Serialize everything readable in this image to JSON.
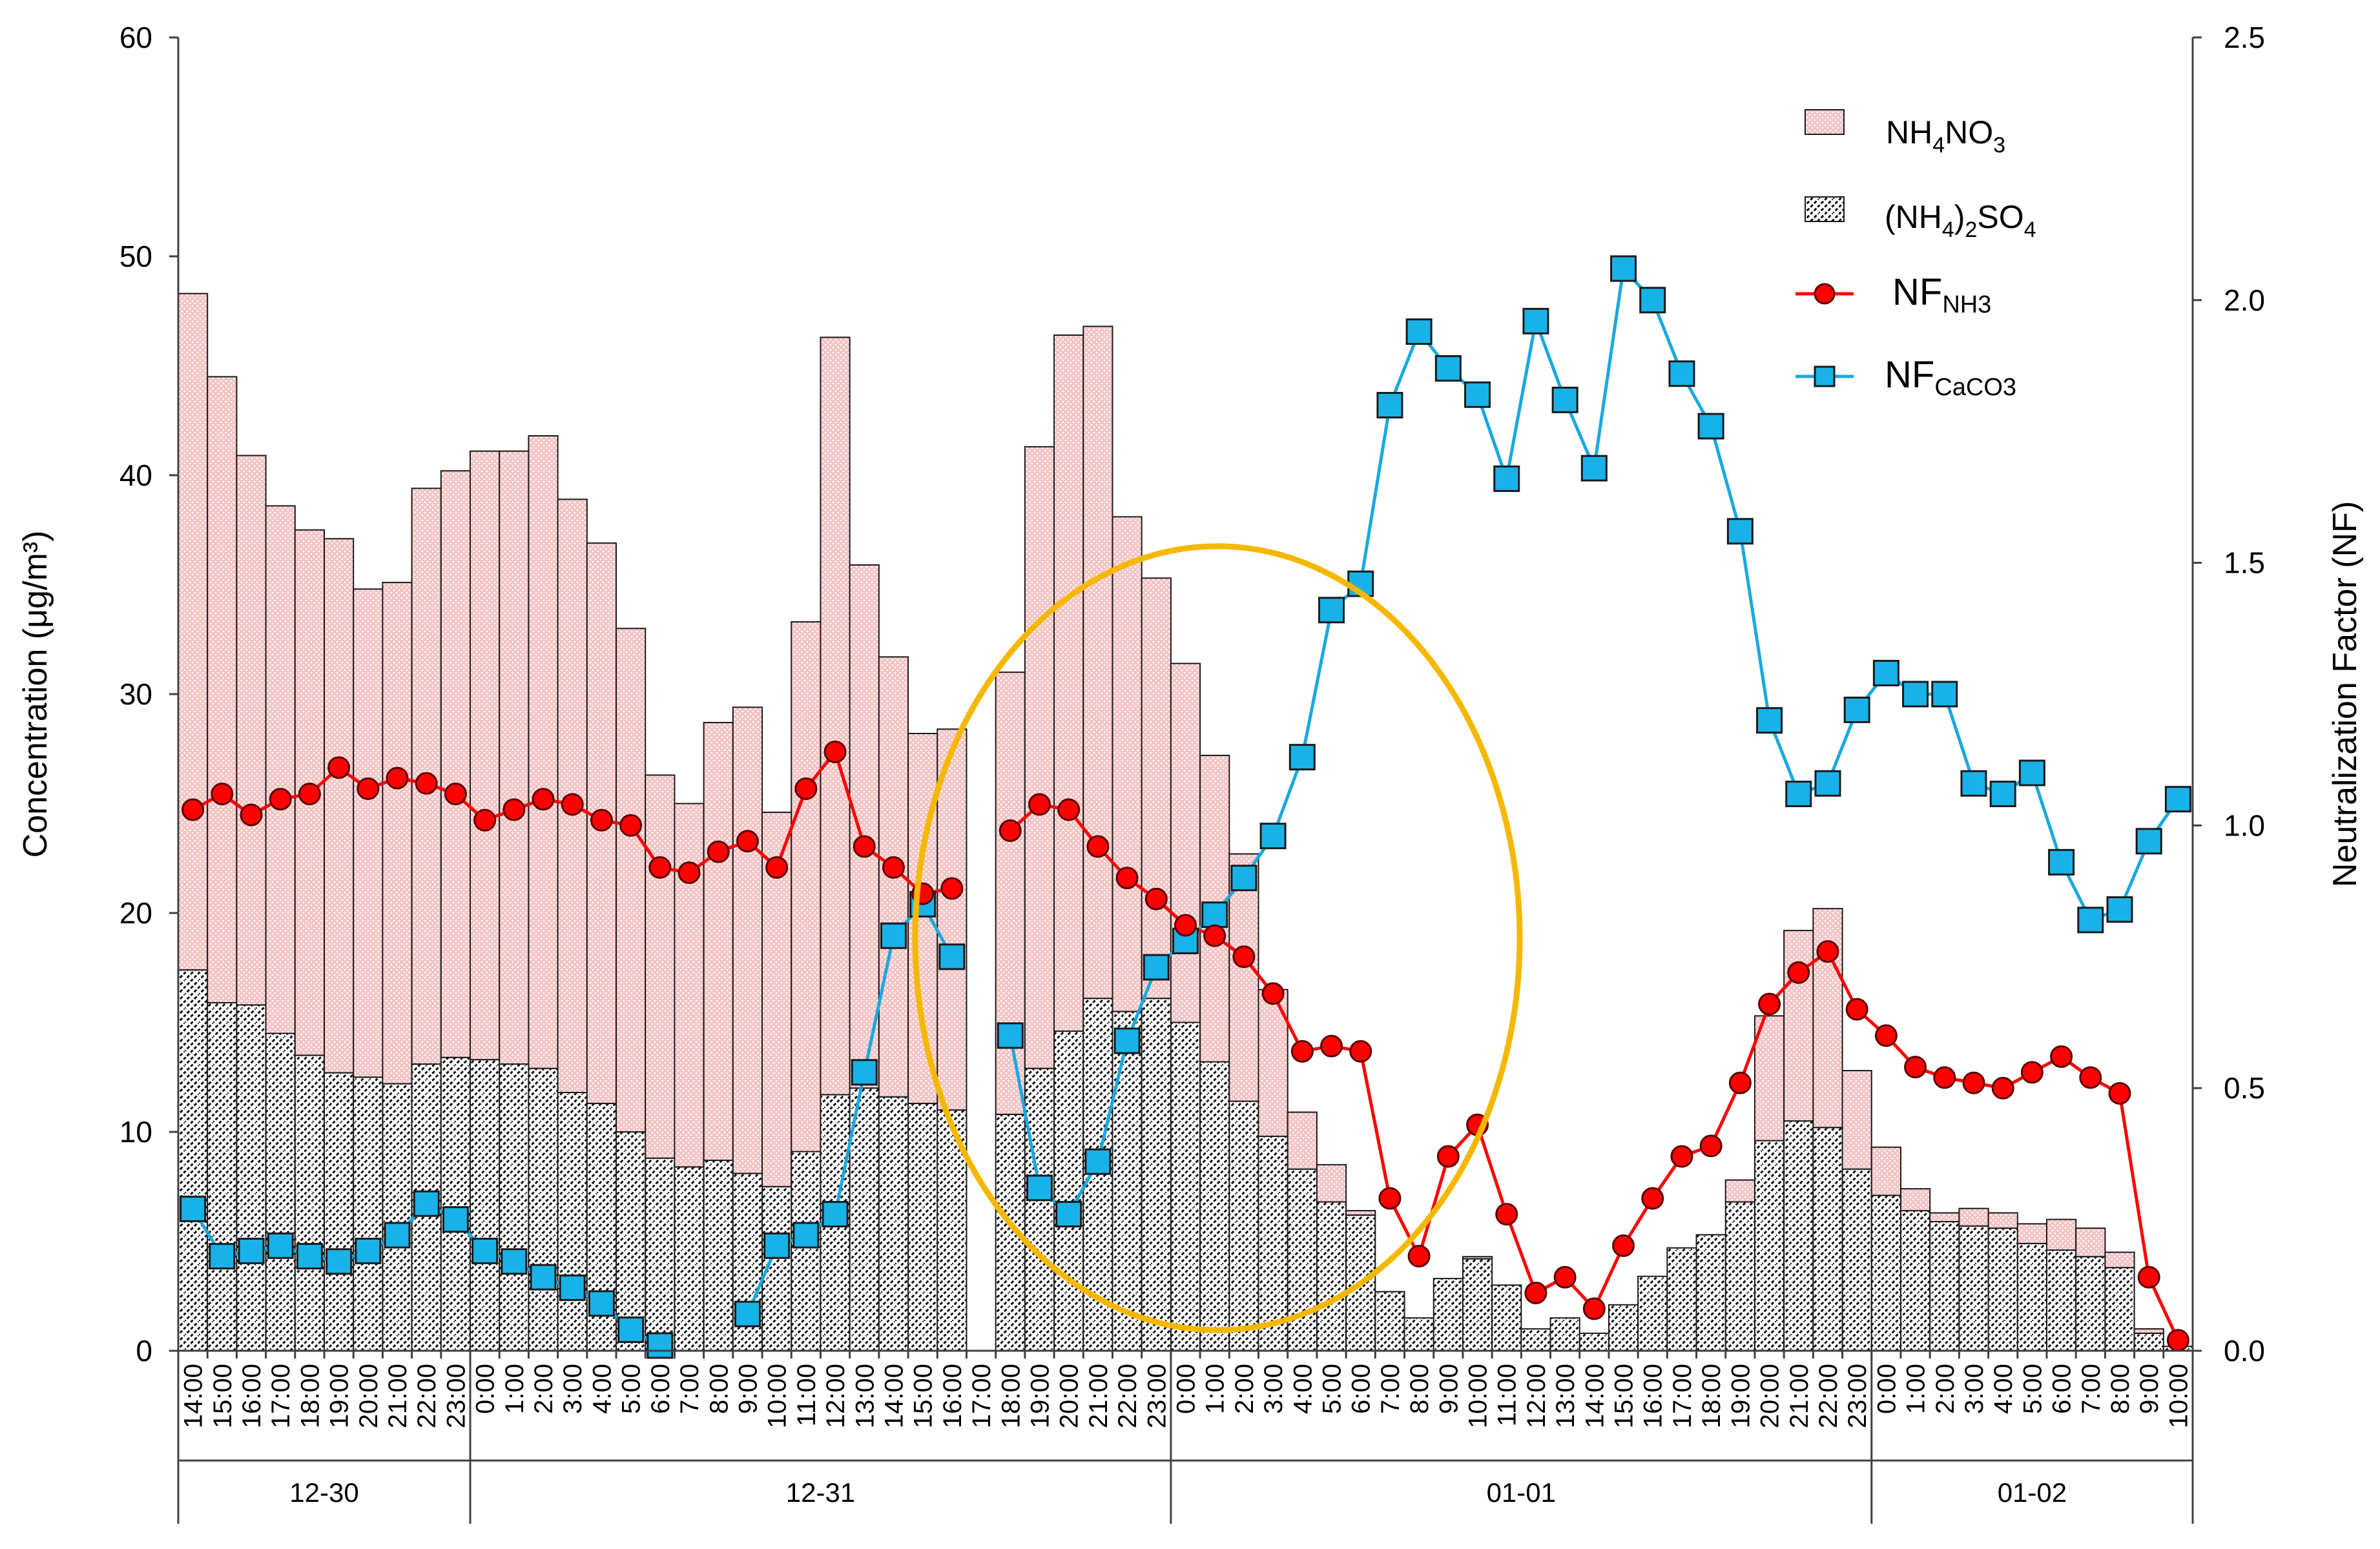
{
  "chart_data": {
    "type": "bar",
    "stacked": true,
    "ylabel": "Concentration (μg/m³)",
    "y2label": "Neutralization Factor (NF)",
    "ylim": [
      0,
      60
    ],
    "y2lim": [
      0,
      2.5
    ],
    "yticks": [
      "0",
      "10",
      "20",
      "30",
      "40",
      "50",
      "60"
    ],
    "y2ticks": [
      "0.0",
      "0.5",
      "1.0",
      "1.5",
      "2.0",
      "2.5"
    ],
    "categories": [
      "14:00",
      "15:00",
      "16:00",
      "17:00",
      "18:00",
      "19:00",
      "20:00",
      "21:00",
      "22:00",
      "23:00",
      "0:00",
      "1:00",
      "2:00",
      "3:00",
      "4:00",
      "5:00",
      "6:00",
      "7:00",
      "8:00",
      "9:00",
      "10:00",
      "11:00",
      "12:00",
      "13:00",
      "14:00",
      "15:00",
      "16:00",
      "17:00",
      "18:00",
      "19:00",
      "20:00",
      "21:00",
      "22:00",
      "23:00",
      "0:00",
      "1:00",
      "2:00",
      "3:00",
      "4:00",
      "5:00",
      "6:00",
      "7:00",
      "8:00",
      "9:00",
      "10:00",
      "11:00",
      "12:00",
      "13:00",
      "14:00",
      "15:00",
      "16:00",
      "17:00",
      "18:00",
      "19:00",
      "20:00",
      "21:00",
      "22:00",
      "23:00",
      "0:00",
      "1:00",
      "2:00",
      "3:00",
      "4:00",
      "5:00",
      "6:00",
      "7:00",
      "8:00",
      "9:00",
      "10:00"
    ],
    "date_groups": [
      {
        "label": "12-30",
        "start": 0,
        "end": 10
      },
      {
        "label": "12-31",
        "start": 10,
        "end": 34
      },
      {
        "label": "01-01",
        "start": 34,
        "end": 58
      },
      {
        "label": "01-02",
        "start": 58,
        "end": 69
      }
    ],
    "series": [
      {
        "name": "(NH4)2SO4",
        "kind": "bar",
        "values": [
          17.4,
          15.9,
          15.8,
          14.5,
          13.5,
          12.7,
          12.5,
          12.2,
          13.1,
          13.4,
          13.3,
          13.1,
          12.9,
          11.8,
          11.3,
          10.0,
          8.8,
          8.4,
          8.7,
          8.1,
          7.5,
          9.1,
          11.7,
          12.0,
          11.6,
          11.3,
          11.0,
          null,
          10.8,
          12.9,
          14.6,
          16.1,
          15.5,
          16.1,
          15.0,
          13.2,
          11.4,
          9.8,
          8.3,
          6.8,
          6.2,
          2.7,
          1.5,
          3.3,
          4.2,
          3.0,
          1.0,
          1.5,
          0.8,
          2.1,
          3.4,
          4.7,
          5.3,
          6.8,
          9.6,
          10.5,
          10.2,
          8.3,
          7.1,
          6.4,
          5.9,
          5.7,
          5.6,
          4.9,
          4.6,
          4.3,
          3.8,
          0.8,
          0.2
        ]
      },
      {
        "name": "NH4NO3",
        "kind": "bar",
        "values": [
          30.9,
          28.6,
          25.1,
          24.1,
          24.0,
          24.4,
          22.3,
          22.9,
          26.3,
          26.8,
          27.8,
          28.0,
          28.9,
          27.1,
          25.6,
          23.0,
          17.5,
          16.6,
          20.0,
          21.3,
          17.1,
          24.2,
          34.6,
          23.9,
          20.1,
          16.9,
          17.4,
          null,
          20.2,
          28.4,
          31.8,
          30.7,
          22.6,
          19.2,
          16.4,
          14.0,
          11.3,
          6.7,
          2.6,
          1.7,
          0.2,
          0.0,
          0.0,
          0.0,
          0.1,
          0.0,
          0.0,
          0.0,
          0.0,
          0.0,
          0.0,
          0.0,
          0.0,
          1.0,
          5.7,
          8.7,
          10.0,
          4.5,
          2.2,
          1.0,
          0.4,
          0.8,
          0.7,
          0.9,
          1.4,
          1.3,
          0.7,
          0.2,
          0.0
        ]
      },
      {
        "name": "NF_NH3",
        "kind": "line",
        "axis": "right",
        "values": [
          1.03,
          1.06,
          1.02,
          1.05,
          1.06,
          1.11,
          1.07,
          1.09,
          1.08,
          1.06,
          1.01,
          1.03,
          1.05,
          1.04,
          1.01,
          1.0,
          0.92,
          0.91,
          0.95,
          0.97,
          0.92,
          1.07,
          1.14,
          0.96,
          0.92,
          0.87,
          0.88,
          null,
          0.99,
          1.04,
          1.03,
          0.96,
          0.9,
          0.86,
          0.81,
          0.79,
          0.75,
          0.68,
          0.57,
          0.58,
          0.57,
          0.29,
          0.18,
          0.37,
          0.43,
          0.26,
          0.11,
          0.14,
          0.08,
          0.2,
          0.29,
          0.37,
          0.39,
          0.51,
          0.66,
          0.72,
          0.76,
          0.65,
          0.6,
          0.54,
          0.52,
          0.51,
          0.5,
          0.53,
          0.56,
          0.52,
          0.49,
          0.14,
          0.02
        ]
      },
      {
        "name": "NF_CaCO3",
        "kind": "line",
        "axis": "right",
        "values": [
          0.27,
          0.18,
          0.19,
          0.2,
          0.18,
          0.17,
          0.19,
          0.22,
          0.28,
          0.25,
          0.19,
          0.17,
          0.14,
          0.12,
          0.09,
          0.04,
          0.01,
          null,
          null,
          0.07,
          0.2,
          0.22,
          0.26,
          0.53,
          0.79,
          0.85,
          0.75,
          null,
          0.6,
          0.31,
          0.26,
          0.36,
          0.59,
          0.73,
          0.78,
          0.83,
          0.9,
          0.98,
          1.13,
          1.41,
          1.46,
          1.8,
          1.94,
          1.87,
          1.82,
          1.66,
          1.96,
          1.81,
          1.68,
          2.06,
          2.0,
          1.86,
          1.76,
          1.56,
          1.2,
          1.06,
          1.08,
          1.22,
          1.29,
          1.25,
          1.25,
          1.08,
          1.06,
          1.1,
          0.93,
          0.82,
          0.84,
          0.97,
          1.05
        ]
      }
    ],
    "legend": [
      {
        "key": "NH4NO3",
        "main": "NH",
        "sub1": "4",
        "mid": "NO",
        "sub2": "3"
      },
      {
        "key": "(NH4)2SO4",
        "p1": "(NH",
        "s1": "4",
        "p2": ")",
        "s2": "2",
        "p3": "SO",
        "s3": "4"
      },
      {
        "key": "NF_NH3",
        "main": "NF",
        "sub": "NH3"
      },
      {
        "key": "NF_CaCO3",
        "main": "NF",
        "sub": "CaCO3"
      }
    ],
    "legend_position": "top-right",
    "annotation": "ellipse highlighting 12-31 18:00 to 01-01 09:00"
  },
  "colors": {
    "nitrate_fill": "#f4b6b6",
    "nh3_line": "#ff0000",
    "caco3_line": "#19a9e0",
    "caco3_marker": "#19b2e8",
    "ellipse": "#f5b800"
  }
}
